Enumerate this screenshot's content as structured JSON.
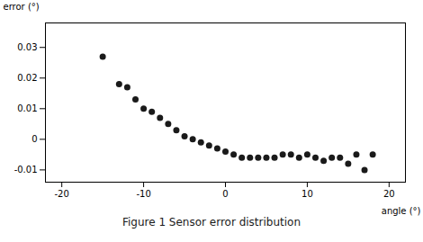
{
  "chart_data": {
    "type": "scatter",
    "caption": "Figure 1  Sensor error distribution",
    "x_label": "angle (°)",
    "y_label": "error (°)",
    "x": [
      -15,
      -13,
      -12,
      -11,
      -10,
      -9,
      -8,
      -7,
      -6,
      -5,
      -4,
      -3,
      -2,
      -1,
      0,
      1,
      2,
      3,
      4,
      5,
      6,
      7,
      8,
      9,
      10,
      11,
      12,
      13,
      14,
      15,
      16,
      17,
      18
    ],
    "values": [
      0.027,
      0.018,
      0.017,
      0.013,
      0.01,
      0.009,
      0.007,
      0.005,
      0.003,
      0.001,
      0.0,
      -0.001,
      -0.002,
      -0.003,
      -0.004,
      -0.005,
      -0.006,
      -0.006,
      -0.006,
      -0.006,
      -0.006,
      -0.005,
      -0.005,
      -0.006,
      -0.005,
      -0.006,
      -0.007,
      -0.006,
      -0.006,
      -0.008,
      -0.005,
      -0.01,
      -0.005
    ],
    "color": "#1a1a1a",
    "xlim": [
      -22,
      22
    ],
    "ylim": [
      -0.014,
      0.038
    ],
    "xticks": [
      -20,
      -10,
      0,
      10,
      20
    ],
    "yticks": [
      -0.01,
      0,
      0.01,
      0.02,
      0.03
    ],
    "grid": false
  }
}
